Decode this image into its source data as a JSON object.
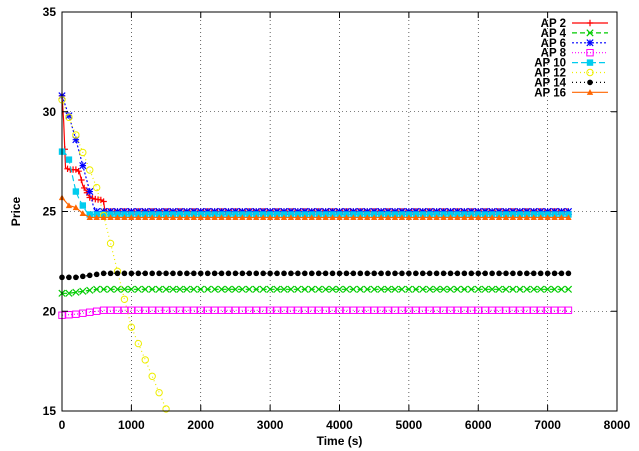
{
  "chart_data": {
    "type": "line",
    "title": "",
    "xlabel": "Time (s)",
    "ylabel": "Price",
    "xlim": [
      0,
      8000
    ],
    "ylim": [
      15,
      35
    ],
    "x_ticks": [
      0,
      1000,
      2000,
      3000,
      4000,
      5000,
      6000,
      7000,
      8000
    ],
    "y_ticks": [
      15,
      20,
      25,
      30,
      35
    ],
    "grid": true,
    "legend_position": "top-right",
    "series": [
      {
        "name": "AP 2",
        "color": "#ff0000",
        "marker": "plus",
        "dash": "",
        "points": [
          [
            0,
            30.8
          ],
          [
            25,
            29.5
          ],
          [
            50,
            27.2
          ],
          [
            100,
            27.1
          ],
          [
            150,
            27.1
          ],
          [
            200,
            27.1
          ],
          [
            250,
            27.0
          ],
          [
            300,
            26.3
          ],
          [
            350,
            26.0
          ],
          [
            400,
            25.7
          ],
          [
            500,
            25.6
          ],
          [
            550,
            25.6
          ],
          [
            600,
            25.5
          ],
          [
            620,
            25.0
          ],
          [
            700,
            25.0
          ],
          [
            7300,
            25.0
          ]
        ],
        "step": 40
      },
      {
        "name": "AP 4",
        "color": "#00cc00",
        "marker": "x",
        "dash": "5,3",
        "points": [
          [
            0,
            20.9
          ],
          [
            100,
            20.9
          ],
          [
            200,
            20.95
          ],
          [
            300,
            21.0
          ],
          [
            400,
            21.05
          ],
          [
            500,
            21.1
          ],
          [
            600,
            21.1
          ],
          [
            7300,
            21.1
          ]
        ],
        "step": 100
      },
      {
        "name": "AP 6",
        "color": "#0000ff",
        "marker": "star",
        "dash": "2,2",
        "points": [
          [
            0,
            30.8
          ],
          [
            100,
            29.8
          ],
          [
            200,
            28.6
          ],
          [
            300,
            27.3
          ],
          [
            400,
            26.0
          ],
          [
            450,
            25.3
          ],
          [
            500,
            25.0
          ],
          [
            7300,
            25.0
          ]
        ],
        "step": 100
      },
      {
        "name": "AP 8",
        "color": "#ff00ff",
        "marker": "square",
        "dash": "1,2",
        "points": [
          [
            0,
            19.8
          ],
          [
            200,
            19.85
          ],
          [
            300,
            19.9
          ],
          [
            400,
            19.95
          ],
          [
            500,
            20.0
          ],
          [
            600,
            20.05
          ],
          [
            700,
            20.05
          ],
          [
            7300,
            20.05
          ]
        ],
        "step": 100
      },
      {
        "name": "AP 10",
        "color": "#00ccee",
        "marker": "fsquare",
        "dash": "6,3",
        "points": [
          [
            0,
            28.0
          ],
          [
            50,
            27.9
          ],
          [
            100,
            27.6
          ],
          [
            150,
            26.8
          ],
          [
            200,
            26.0
          ],
          [
            250,
            25.6
          ],
          [
            300,
            25.3
          ],
          [
            350,
            25.0
          ],
          [
            400,
            24.85
          ],
          [
            7300,
            24.85
          ]
        ],
        "step": 100
      },
      {
        "name": "AP 12",
        "color": "#eeee00",
        "marker": "circle",
        "dash": "1,3",
        "points": [
          [
            0,
            30.6
          ],
          [
            500,
            26.2
          ],
          [
            1000,
            19.2
          ],
          [
            1500,
            15.1
          ]
        ],
        "step": 100
      },
      {
        "name": "AP 14",
        "color": "#000000",
        "marker": "fcircle",
        "dash": "1,3",
        "points": [
          [
            0,
            21.7
          ],
          [
            200,
            21.7
          ],
          [
            400,
            21.8
          ],
          [
            500,
            21.85
          ],
          [
            600,
            21.9
          ],
          [
            7300,
            21.9
          ]
        ],
        "step": 100
      },
      {
        "name": "AP 16",
        "color": "#ff6600",
        "marker": "triangle",
        "dash": "",
        "points": [
          [
            0,
            25.7
          ],
          [
            100,
            25.3
          ],
          [
            200,
            25.2
          ],
          [
            300,
            24.9
          ],
          [
            400,
            24.7
          ],
          [
            7300,
            24.7
          ]
        ],
        "step": 100
      }
    ]
  }
}
